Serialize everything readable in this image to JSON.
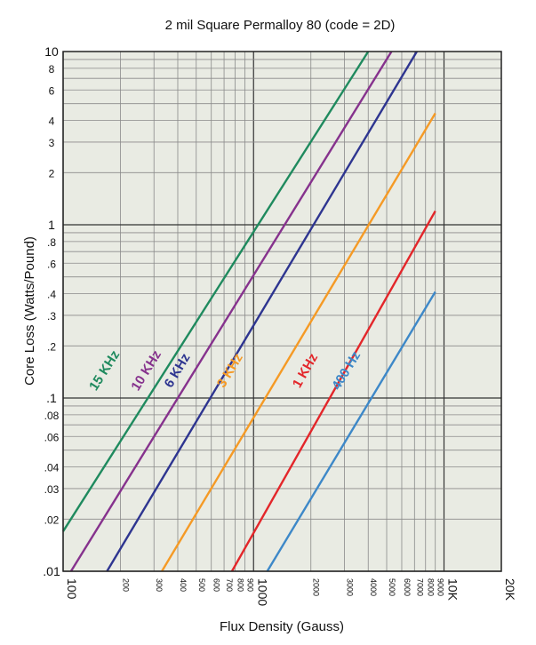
{
  "chart_data": {
    "type": "line",
    "title": "2 mil Square Permalloy 80 (code = 2D)",
    "xlabel": "Flux Density (Gauss)",
    "ylabel": "Core Loss (Watts/Pound)",
    "xscale": "log",
    "yscale": "log",
    "xlim": [
      100,
      20000
    ],
    "ylim": [
      0.01,
      10
    ],
    "grid": true,
    "background": "#e9ebe3",
    "x_tick_labels": [
      {
        "value": 100,
        "label": "100",
        "major": true
      },
      {
        "value": 200,
        "label": "200",
        "major": false
      },
      {
        "value": 300,
        "label": "300",
        "major": false
      },
      {
        "value": 400,
        "label": "400",
        "major": false
      },
      {
        "value": 500,
        "label": "500",
        "major": false
      },
      {
        "value": 600,
        "label": "600",
        "major": false
      },
      {
        "value": 700,
        "label": "700",
        "major": false
      },
      {
        "value": 800,
        "label": "800",
        "major": false
      },
      {
        "value": 900,
        "label": "900",
        "major": false
      },
      {
        "value": 1000,
        "label": "1000",
        "major": true
      },
      {
        "value": 2000,
        "label": "2000",
        "major": false
      },
      {
        "value": 3000,
        "label": "3000",
        "major": false
      },
      {
        "value": 4000,
        "label": "4000",
        "major": false
      },
      {
        "value": 5000,
        "label": "5000",
        "major": false
      },
      {
        "value": 6000,
        "label": "6000",
        "major": false
      },
      {
        "value": 7000,
        "label": "7000",
        "major": false
      },
      {
        "value": 8000,
        "label": "8000",
        "major": false
      },
      {
        "value": 9000,
        "label": "9000",
        "major": false
      },
      {
        "value": 10000,
        "label": "10K",
        "major": true
      },
      {
        "value": 20000,
        "label": "20K",
        "major": true
      }
    ],
    "y_tick_labels": [
      {
        "value": 10,
        "label": "10",
        "major": true
      },
      {
        "value": 8,
        "label": "8",
        "major": false
      },
      {
        "value": 6,
        "label": "6",
        "major": false
      },
      {
        "value": 4,
        "label": "4",
        "major": false
      },
      {
        "value": 3,
        "label": "3",
        "major": false
      },
      {
        "value": 2,
        "label": "2",
        "major": false
      },
      {
        "value": 1,
        "label": "1",
        "major": true
      },
      {
        "value": 0.8,
        "label": ".8",
        "major": false
      },
      {
        "value": 0.6,
        "label": ".6",
        "major": false
      },
      {
        "value": 0.4,
        "label": ".4",
        "major": false
      },
      {
        "value": 0.3,
        "label": ".3",
        "major": false
      },
      {
        "value": 0.2,
        "label": ".2",
        "major": false
      },
      {
        "value": 0.1,
        "label": ".1",
        "major": true
      },
      {
        "value": 0.08,
        "label": ".08",
        "major": false
      },
      {
        "value": 0.06,
        "label": ".06",
        "major": false
      },
      {
        "value": 0.04,
        "label": ".04",
        "major": false
      },
      {
        "value": 0.03,
        "label": ".03",
        "major": false
      },
      {
        "value": 0.02,
        "label": ".02",
        "major": false
      },
      {
        "value": 0.01,
        "label": ".01",
        "major": true
      }
    ],
    "series": [
      {
        "name": "15 KHz",
        "color": "#1f8a5e",
        "x": [
          100,
          4000
        ],
        "y": [
          0.017,
          10.0
        ],
        "label_at": {
          "x": 172,
          "y": 0.14
        }
      },
      {
        "name": "10 KHz",
        "color": "#86328d",
        "x": [
          110,
          5300
        ],
        "y": [
          0.01,
          10.0
        ],
        "label_at": {
          "x": 285,
          "y": 0.14
        }
      },
      {
        "name": "6 KHz",
        "color": "#2e3590",
        "x": [
          170,
          7200
        ],
        "y": [
          0.01,
          10.0
        ],
        "label_at": {
          "x": 415,
          "y": 0.14
        }
      },
      {
        "name": "3 KHz",
        "color": "#f59a25",
        "x": [
          330,
          9000
        ],
        "y": [
          0.01,
          4.4
        ],
        "label_at": {
          "x": 785,
          "y": 0.14
        }
      },
      {
        "name": "1 KHz",
        "color": "#e3262a",
        "x": [
          770,
          9000
        ],
        "y": [
          0.01,
          1.2
        ],
        "label_at": {
          "x": 1950,
          "y": 0.14
        }
      },
      {
        "name": "400 Hz",
        "color": "#3d88c8",
        "x": [
          1180,
          9000
        ],
        "y": [
          0.01,
          0.41
        ],
        "label_at": {
          "x": 3200,
          "y": 0.14
        }
      }
    ]
  }
}
